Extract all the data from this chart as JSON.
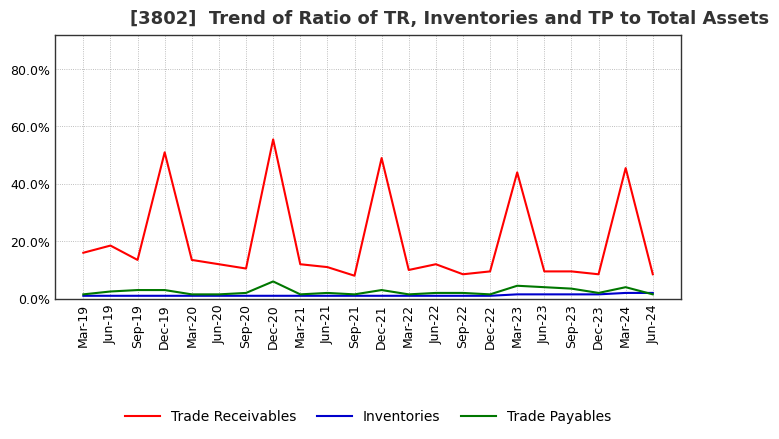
{
  "title": "[3802]  Trend of Ratio of TR, Inventories and TP to Total Assets",
  "ylim": [
    0,
    0.92
  ],
  "yticks": [
    0.0,
    0.2,
    0.4,
    0.6,
    0.8
  ],
  "x_labels": [
    "Mar-19",
    "Jun-19",
    "Sep-19",
    "Dec-19",
    "Mar-20",
    "Jun-20",
    "Sep-20",
    "Dec-20",
    "Mar-21",
    "Jun-21",
    "Sep-21",
    "Dec-21",
    "Mar-22",
    "Jun-22",
    "Sep-22",
    "Dec-22",
    "Mar-23",
    "Jun-23",
    "Sep-23",
    "Dec-23",
    "Mar-24",
    "Jun-24"
  ],
  "trade_receivables": [
    0.16,
    0.185,
    0.135,
    0.51,
    0.135,
    0.12,
    0.105,
    0.555,
    0.12,
    0.11,
    0.08,
    0.49,
    0.1,
    0.12,
    0.085,
    0.095,
    0.44,
    0.095,
    0.095,
    0.085,
    0.455,
    0.085
  ],
  "inventories": [
    0.01,
    0.01,
    0.01,
    0.01,
    0.01,
    0.01,
    0.01,
    0.01,
    0.01,
    0.01,
    0.01,
    0.01,
    0.01,
    0.01,
    0.01,
    0.01,
    0.015,
    0.015,
    0.015,
    0.015,
    0.02,
    0.02
  ],
  "trade_payables": [
    0.015,
    0.025,
    0.03,
    0.03,
    0.015,
    0.015,
    0.02,
    0.06,
    0.015,
    0.02,
    0.015,
    0.03,
    0.015,
    0.02,
    0.02,
    0.015,
    0.045,
    0.04,
    0.035,
    0.02,
    0.04,
    0.015
  ],
  "tr_color": "#ff0000",
  "inv_color": "#0000cc",
  "tp_color": "#007700",
  "grid_color": "#aaaaaa",
  "background_color": "#ffffff",
  "legend_labels": [
    "Trade Receivables",
    "Inventories",
    "Trade Payables"
  ],
  "title_fontsize": 13,
  "tick_fontsize": 9,
  "legend_fontsize": 10
}
